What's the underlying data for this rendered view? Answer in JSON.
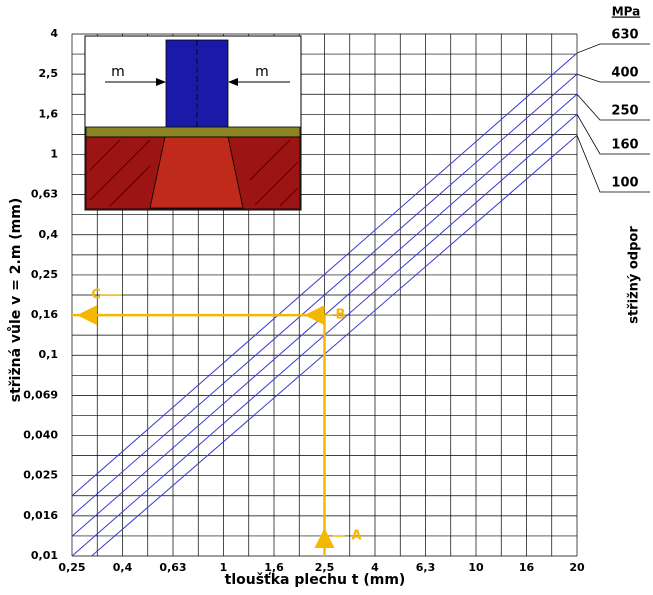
{
  "chart_data": {
    "type": "line",
    "x_label": "tloušťka plechu t (mm)",
    "y_label": "střižná vůle v = 2.m (mm)",
    "unit_label": "MPa",
    "legend_title": "střižný odpor",
    "log_scale": true,
    "grid": true,
    "xlim": [
      0.25,
      20
    ],
    "ylim": [
      0.01,
      4
    ],
    "xticks": [
      {
        "value": 0.25,
        "label": "0,25"
      },
      {
        "value": 0.4,
        "label": "0,4"
      },
      {
        "value": 0.63,
        "label": "0,63"
      },
      1,
      {
        "value": 1.6,
        "label": "1,6"
      },
      {
        "value": 2.5,
        "label": "2,5"
      },
      4,
      {
        "value": 6.3,
        "label": "6,3"
      },
      10,
      16,
      20
    ],
    "yticks": [
      {
        "value": 0.01,
        "label": "0,01"
      },
      {
        "value": 0.016,
        "label": "0,016"
      },
      {
        "value": 0.025,
        "label": "0,025"
      },
      {
        "value": 0.04,
        "label": "0,040"
      },
      {
        "value": 0.069,
        "label": "0,069"
      },
      {
        "value": 0.1,
        "label": "0,1"
      },
      {
        "value": 0.16,
        "label": "0,16"
      },
      {
        "value": 0.25,
        "label": "0,25"
      },
      {
        "value": 0.4,
        "label": "0,4"
      },
      {
        "value": 0.63,
        "label": "0,63"
      },
      1,
      {
        "value": 1.6,
        "label": "1,6"
      },
      {
        "value": 2.5,
        "label": "2,5"
      },
      4
    ],
    "series": [
      {
        "name": "630",
        "color": "#3a3ad0",
        "x": [
          0.25,
          20
        ],
        "values": [
          0.02,
          3.2
        ]
      },
      {
        "name": "400",
        "color": "#3a3ad0",
        "x": [
          0.25,
          20
        ],
        "values": [
          0.016,
          2.5
        ]
      },
      {
        "name": "250",
        "color": "#3a3ad0",
        "x": [
          0.25,
          20
        ],
        "values": [
          0.0126,
          2
        ]
      },
      {
        "name": "160",
        "color": "#3a3ad0",
        "x": [
          0.25,
          20
        ],
        "values": [
          0.01,
          1.6
        ]
      },
      {
        "name": "100",
        "color": "#3a3ad0",
        "x": [
          0.3,
          20
        ],
        "values": [
          0.01,
          1.25
        ]
      }
    ],
    "example": {
      "x": 2.5,
      "y": 0.16,
      "labels": [
        "A",
        "B",
        "C"
      ],
      "color": "#f5b800"
    },
    "inset": {
      "labels": [
        "m",
        "m"
      ]
    }
  }
}
